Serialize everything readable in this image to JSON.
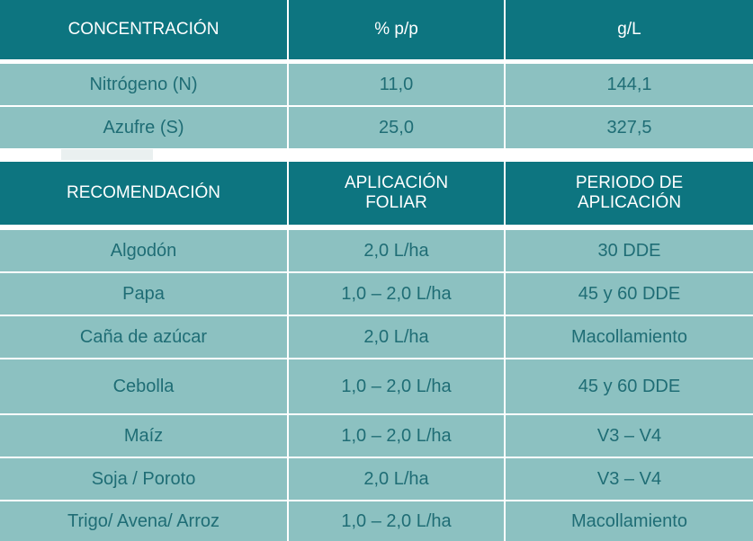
{
  "table1": {
    "headers": [
      "CONCENTRACIÓN",
      "% p/p",
      "g/L"
    ],
    "rows": [
      [
        "Nitrógeno (N)",
        "11,0",
        "144,1"
      ],
      [
        "Azufre (S)",
        "25,0",
        "327,5"
      ]
    ]
  },
  "table2": {
    "headers": [
      "RECOMENDACIÓN",
      "APLICACIÓN\nFOLIAR",
      "PERIODO DE\nAPLICACIÓN"
    ],
    "rows": [
      [
        "Algodón",
        "2,0 L/ha",
        "30 DDE"
      ],
      [
        "Papa",
        "1,0 – 2,0 L/ha",
        "45 y 60 DDE"
      ],
      [
        "Caña de azúcar",
        "2,0 L/ha",
        "Macollamiento"
      ],
      [
        "Cebolla",
        "1,0 – 2,0 L/ha",
        "45 y 60 DDE"
      ],
      [
        "Maíz",
        "1,0 – 2,0 L/ha",
        "V3 – V4"
      ],
      [
        "Soja / Poroto",
        "2,0 L/ha",
        "V3 – V4"
      ],
      [
        "Trigo/ Avena/ Arroz",
        "1,0 – 2,0 L/ha",
        "Macollamiento"
      ]
    ]
  },
  "colors": {
    "header_bg": "#0d7580",
    "row_bg": "#8cc1c1",
    "row_text": "#1f6d75"
  }
}
